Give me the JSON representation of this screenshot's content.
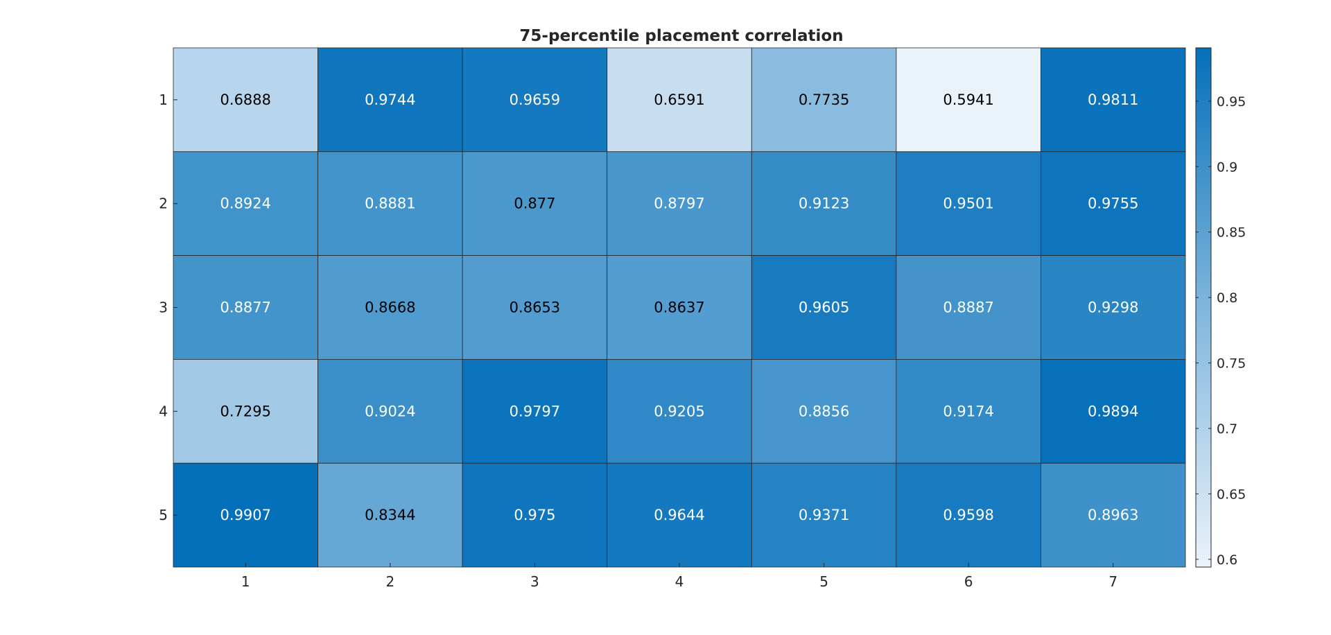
{
  "chart_data": {
    "type": "heatmap",
    "title": "75-percentile placement correlation",
    "x_labels": [
      "1",
      "2",
      "3",
      "4",
      "5",
      "6",
      "7"
    ],
    "y_labels": [
      "1",
      "2",
      "3",
      "4",
      "5"
    ],
    "values": [
      [
        0.6888,
        0.9744,
        0.9659,
        0.6591,
        0.7735,
        0.5941,
        0.9811
      ],
      [
        0.8924,
        0.8881,
        0.877,
        0.8797,
        0.9123,
        0.9501,
        0.9755
      ],
      [
        0.8877,
        0.8668,
        0.8653,
        0.8637,
        0.9605,
        0.8887,
        0.9298
      ],
      [
        0.7295,
        0.9024,
        0.9797,
        0.9205,
        0.8856,
        0.9174,
        0.9894
      ],
      [
        0.9907,
        0.8344,
        0.975,
        0.9644,
        0.9371,
        0.9598,
        0.8963
      ]
    ],
    "value_labels": [
      [
        "0.6888",
        "0.9744",
        "0.9659",
        "0.6591",
        "0.7735",
        "0.5941",
        "0.9811"
      ],
      [
        "0.8924",
        "0.8881",
        "0.877",
        "0.8797",
        "0.9123",
        "0.9501",
        "0.9755"
      ],
      [
        "0.8877",
        "0.8668",
        "0.8653",
        "0.8637",
        "0.9605",
        "0.8887",
        "0.9298"
      ],
      [
        "0.7295",
        "0.9024",
        "0.9797",
        "0.9205",
        "0.8856",
        "0.9174",
        "0.9894"
      ],
      [
        "0.9907",
        "0.8344",
        "0.975",
        "0.9644",
        "0.9371",
        "0.9598",
        "0.8963"
      ]
    ],
    "color_range": [
      0.5941,
      0.9907
    ],
    "colorbar_ticks": [
      0.6,
      0.65,
      0.7,
      0.75,
      0.8,
      0.85,
      0.9,
      0.95
    ],
    "colorbar_tick_labels": [
      "0.6",
      "0.65",
      "0.7",
      "0.75",
      "0.8",
      "0.85",
      "0.9",
      "0.95"
    ],
    "colormap": {
      "low": "#eaf2fa",
      "mid": "#7fb6dc",
      "high": "#0570ba"
    },
    "label_colors": {
      "dark": "#000000",
      "light": "#ffffff"
    },
    "light_label_threshold": 0.878,
    "grid_color": "#262626"
  }
}
